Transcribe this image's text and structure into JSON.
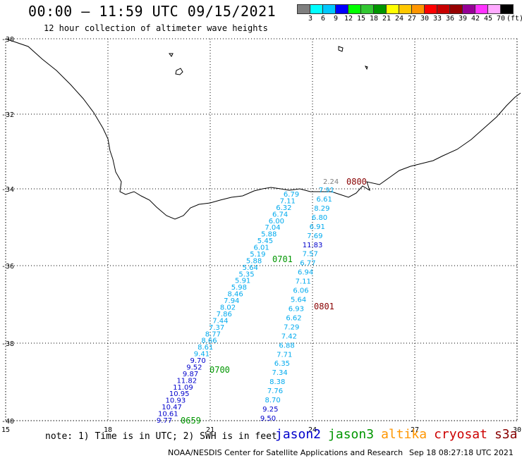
{
  "header": {
    "title": "00:00 – 11:59 UTC 09/15/2021",
    "subtitle": "12 hour collection of altimeter wave heights"
  },
  "colorbar": {
    "colors": [
      "#7f7f7f",
      "#00ffff",
      "#00c8ff",
      "#0000ff",
      "#00ff00",
      "#32c832",
      "#009600",
      "#ffff00",
      "#ffc800",
      "#ff9600",
      "#ff0000",
      "#c80000",
      "#960000",
      "#960096",
      "#ff32ff",
      "#ffaaff",
      "#000000"
    ],
    "labels": [
      "3",
      "6",
      "9",
      "12",
      "15",
      "18",
      "21",
      "24",
      "27",
      "30",
      "33",
      "36",
      "39",
      "42",
      "45",
      "70",
      "(ft)"
    ]
  },
  "axes": {
    "lon_ticks": [
      "15",
      "18",
      "21",
      "24",
      "27",
      "30"
    ],
    "lat_ticks": [
      "-30",
      "-32",
      "-34",
      "-36",
      "-38",
      "-40"
    ]
  },
  "tracks": {
    "west": {
      "values": [
        "6.79",
        "7.11",
        "6.32",
        "6.74",
        "6.00",
        "7.04",
        "5.88",
        "5.45",
        "6.01",
        "5.19",
        "5.88",
        "5.64",
        "5.35",
        "5.91",
        "5.98",
        "8.46",
        "7.94",
        "8.02",
        "7.86",
        "7.44",
        "7.37",
        "8.77",
        "8.66",
        "8.61",
        "9.41",
        "9.70",
        "9.52",
        "9.87",
        "11.82",
        "11.09",
        "10.95",
        "10.93",
        "10.47",
        "10.61",
        "9.77"
      ],
      "colors": [
        "#00aaee",
        "#00aaee",
        "#00aaee",
        "#00aaee",
        "#00aaee",
        "#00aaee",
        "#00aaee",
        "#00aaee",
        "#00aaee",
        "#00aaee",
        "#00aaee",
        "#00aaee",
        "#00aaee",
        "#00aaee",
        "#00aaee",
        "#00aaee",
        "#00aaee",
        "#00aaee",
        "#00aaee",
        "#00aaee",
        "#00aaee",
        "#00aaee",
        "#00aaee",
        "#00aaee",
        "#00aaee",
        "#0000cc",
        "#0000cc",
        "#0000cc",
        "#0000cc",
        "#0000cc",
        "#0000cc",
        "#0000cc",
        "#0000cc",
        "#0000cc",
        "#0000cc"
      ],
      "time_labels": [
        "0701",
        "0700",
        "0659"
      ]
    },
    "east": {
      "values": [
        "7.91",
        "6.61",
        "8.29",
        "6.80",
        "6.91",
        "7.69",
        "11.83",
        "7.57",
        "6.77",
        "6.94",
        "7.11",
        "6.06",
        "5.64",
        "6.93",
        "6.62",
        "7.29",
        "7.42",
        "6.88",
        "7.71",
        "6.35",
        "7.34",
        "8.38",
        "7.76",
        "8.70",
        "9.25",
        "9.50"
      ],
      "colors": [
        "#00aaee",
        "#00aaee",
        "#00aaee",
        "#00aaee",
        "#00aaee",
        "#00aaee",
        "#0000cc",
        "#00aaee",
        "#00aaee",
        "#00aaee",
        "#00aaee",
        "#00aaee",
        "#00aaee",
        "#00aaee",
        "#00aaee",
        "#00aaee",
        "#00aaee",
        "#00aaee",
        "#00aaee",
        "#00aaee",
        "#00aaee",
        "#00aaee",
        "#00aaee",
        "#00aaee",
        "#0000cc",
        "#0000cc"
      ],
      "time_labels": [
        "0800",
        "0801"
      ]
    },
    "extra_value": "2.24"
  },
  "footer": {
    "note": "note: 1) Time is in UTC; 2) SWH is in feet",
    "missions": [
      {
        "name": "jason2",
        "color": "#0000cc"
      },
      {
        "name": "jason3",
        "color": "#009600"
      },
      {
        "name": "altika",
        "color": "#ff9600"
      },
      {
        "name": "cryosat",
        "color": "#cc0000"
      },
      {
        "name": "s3a",
        "color": "#880000"
      }
    ],
    "credit": "NOAA/NESDIS Center for Satellite Applications and Research",
    "timestamp": "Sep 18 08:27:18 UTC 2021"
  }
}
